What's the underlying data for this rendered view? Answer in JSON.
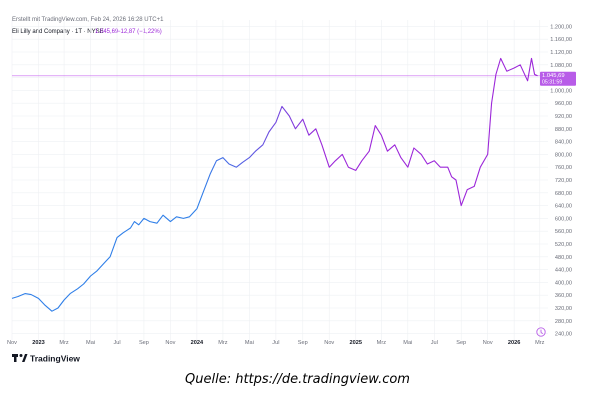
{
  "header": {
    "created": "Erstellt mit TradingView.com, Feb 24, 2026 16:28 UTC+1",
    "symbol_name": "Eli Lilly and Company · 1T · NYSE",
    "price": "1.045,69",
    "change": "−12,87 (−1,22%)"
  },
  "price_tag": {
    "value": "1.045,69",
    "countdown": "05:31:59"
  },
  "branding": {
    "logo_text": "TradingView"
  },
  "source": "Quelle: https://de.tradingview.com",
  "colors": {
    "line_start": "#2f7fe8",
    "line_end": "#9c27d9",
    "price_line": "#c86bf0",
    "price_tag_bg": "#b85ce8",
    "grid": "#eef0f3",
    "axis_text": "#6a6d78"
  },
  "chart_data": {
    "type": "line",
    "title": "",
    "xlabel": "",
    "ylabel": "",
    "ylim": [
      220,
      1220
    ],
    "xlim": [
      "2022-11-01",
      "2026-03-20"
    ],
    "last_value": 1045.69,
    "y_ticks": [
      {
        "v": 1200,
        "label": "1.200,00"
      },
      {
        "v": 1160,
        "label": "1.160,00"
      },
      {
        "v": 1120,
        "label": "1.120,00"
      },
      {
        "v": 1080,
        "label": "1.080,00"
      },
      {
        "v": 1040,
        "label": "1.040,00"
      },
      {
        "v": 1000,
        "label": "1.000,00"
      },
      {
        "v": 960,
        "label": "960,00"
      },
      {
        "v": 920,
        "label": "920,00"
      },
      {
        "v": 880,
        "label": "880,00"
      },
      {
        "v": 840,
        "label": "840,00"
      },
      {
        "v": 800,
        "label": "800,00"
      },
      {
        "v": 760,
        "label": "760,00"
      },
      {
        "v": 720,
        "label": "720,00"
      },
      {
        "v": 680,
        "label": "680,00"
      },
      {
        "v": 640,
        "label": "640,00"
      },
      {
        "v": 600,
        "label": "600,00"
      },
      {
        "v": 560,
        "label": "560,00"
      },
      {
        "v": 520,
        "label": "520,00"
      },
      {
        "v": 480,
        "label": "480,00"
      },
      {
        "v": 440,
        "label": "440,00"
      },
      {
        "v": 400,
        "label": "400,00"
      },
      {
        "v": 360,
        "label": "360,00"
      },
      {
        "v": 320,
        "label": "320,00"
      },
      {
        "v": 280,
        "label": "280,00"
      },
      {
        "v": 240,
        "label": "240,00"
      }
    ],
    "x_ticks": [
      {
        "d": "2022-11-01",
        "label": "Nov",
        "bold": false
      },
      {
        "d": "2023-01-01",
        "label": "2023",
        "bold": true
      },
      {
        "d": "2023-03-01",
        "label": "Mrz",
        "bold": false
      },
      {
        "d": "2023-05-01",
        "label": "Mai",
        "bold": false
      },
      {
        "d": "2023-07-01",
        "label": "Jul",
        "bold": false
      },
      {
        "d": "2023-09-01",
        "label": "Sep",
        "bold": false
      },
      {
        "d": "2023-11-01",
        "label": "Nov",
        "bold": false
      },
      {
        "d": "2024-01-01",
        "label": "2024",
        "bold": true
      },
      {
        "d": "2024-03-01",
        "label": "Mrz",
        "bold": false
      },
      {
        "d": "2024-05-01",
        "label": "Mai",
        "bold": false
      },
      {
        "d": "2024-07-01",
        "label": "Jul",
        "bold": false
      },
      {
        "d": "2024-09-01",
        "label": "Sep",
        "bold": false
      },
      {
        "d": "2024-11-01",
        "label": "Nov",
        "bold": false
      },
      {
        "d": "2025-01-01",
        "label": "2025",
        "bold": true
      },
      {
        "d": "2025-03-01",
        "label": "Mrz",
        "bold": false
      },
      {
        "d": "2025-05-01",
        "label": "Mai",
        "bold": false
      },
      {
        "d": "2025-07-01",
        "label": "Jul",
        "bold": false
      },
      {
        "d": "2025-09-01",
        "label": "Sep",
        "bold": false
      },
      {
        "d": "2025-11-01",
        "label": "Nov",
        "bold": false
      },
      {
        "d": "2026-01-01",
        "label": "2026",
        "bold": true
      },
      {
        "d": "2026-03-01",
        "label": "Mrz",
        "bold": false
      }
    ],
    "series": [
      {
        "x": [
          "2022-11-01",
          "2022-11-15",
          "2022-12-01",
          "2022-12-15",
          "2023-01-01",
          "2023-01-15",
          "2023-02-01",
          "2023-02-15",
          "2023-03-01",
          "2023-03-15",
          "2023-04-01",
          "2023-04-15",
          "2023-05-01",
          "2023-05-15",
          "2023-06-01",
          "2023-06-15",
          "2023-07-01",
          "2023-07-15",
          "2023-08-01",
          "2023-08-10",
          "2023-08-20",
          "2023-09-01",
          "2023-09-15",
          "2023-10-01",
          "2023-10-15",
          "2023-11-01",
          "2023-11-15",
          "2023-12-01",
          "2023-12-15",
          "2024-01-01",
          "2024-01-15",
          "2024-02-01",
          "2024-02-15",
          "2024-03-01",
          "2024-03-15",
          "2024-04-01",
          "2024-04-15",
          "2024-05-01",
          "2024-05-15",
          "2024-06-01",
          "2024-06-15",
          "2024-07-01",
          "2024-07-15",
          "2024-08-01",
          "2024-08-15",
          "2024-09-01",
          "2024-09-15",
          "2024-10-01",
          "2024-10-15",
          "2024-11-01",
          "2024-11-15",
          "2024-12-01",
          "2024-12-15",
          "2025-01-01",
          "2025-01-15",
          "2025-02-01",
          "2025-02-15",
          "2025-03-01",
          "2025-03-15",
          "2025-04-01",
          "2025-04-15",
          "2025-05-01",
          "2025-05-15",
          "2025-06-01",
          "2025-06-15",
          "2025-07-01",
          "2025-07-15",
          "2025-08-01",
          "2025-08-10",
          "2025-08-20",
          "2025-09-01",
          "2025-09-15",
          "2025-10-01",
          "2025-10-15",
          "2025-11-01",
          "2025-11-10",
          "2025-11-20",
          "2025-12-01",
          "2025-12-15",
          "2026-01-01",
          "2026-01-15",
          "2026-02-01",
          "2026-02-10",
          "2026-02-17",
          "2026-02-24"
        ],
        "values": [
          350,
          356,
          365,
          362,
          350,
          330,
          310,
          320,
          345,
          365,
          380,
          395,
          420,
          435,
          460,
          480,
          540,
          555,
          570,
          590,
          580,
          600,
          590,
          585,
          610,
          590,
          605,
          600,
          605,
          630,
          680,
          740,
          780,
          790,
          770,
          760,
          775,
          790,
          810,
          830,
          870,
          900,
          950,
          920,
          880,
          910,
          860,
          880,
          830,
          760,
          780,
          800,
          760,
          750,
          780,
          810,
          890,
          860,
          810,
          830,
          790,
          760,
          820,
          800,
          770,
          780,
          760,
          760,
          730,
          720,
          640,
          690,
          700,
          760,
          800,
          960,
          1050,
          1100,
          1060,
          1070,
          1080,
          1030,
          1100,
          1050,
          1045.69
        ]
      }
    ]
  }
}
